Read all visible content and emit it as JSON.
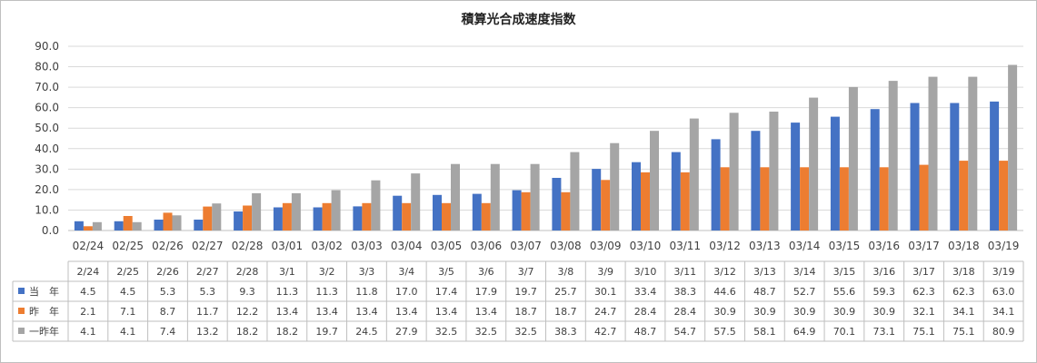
{
  "chart_data": {
    "type": "bar",
    "title": "積算光合成速度指数",
    "categories": [
      "02/24",
      "02/25",
      "02/26",
      "02/27",
      "02/28",
      "03/01",
      "03/02",
      "03/03",
      "03/04",
      "03/05",
      "03/06",
      "03/07",
      "03/08",
      "03/09",
      "03/10",
      "03/11",
      "03/12",
      "03/13",
      "03/14",
      "03/15",
      "03/16",
      "03/17",
      "03/18",
      "03/19"
    ],
    "table_headers": [
      "2/24",
      "2/25",
      "2/26",
      "2/27",
      "2/28",
      "3/1",
      "3/2",
      "3/3",
      "3/4",
      "3/5",
      "3/6",
      "3/7",
      "3/8",
      "3/9",
      "3/10",
      "3/11",
      "3/12",
      "3/13",
      "3/14",
      "3/15",
      "3/16",
      "3/17",
      "3/18",
      "3/19"
    ],
    "ylim": [
      0,
      90
    ],
    "yticks": [
      "0.0",
      "10.0",
      "20.0",
      "30.0",
      "40.0",
      "50.0",
      "60.0",
      "70.0",
      "80.0",
      "90.0"
    ],
    "grid": true,
    "legend": "data-table",
    "series": [
      {
        "name": "当　年",
        "color": "#4472c4",
        "values": [
          4.5,
          4.5,
          5.3,
          5.3,
          9.3,
          11.3,
          11.3,
          11.8,
          17.0,
          17.4,
          17.9,
          19.7,
          25.7,
          30.1,
          33.4,
          38.3,
          44.6,
          48.7,
          52.7,
          55.6,
          59.3,
          62.3,
          62.3,
          63.0
        ],
        "labels": [
          "4.5",
          "4.5",
          "5.3",
          "5.3",
          "9.3",
          "11.3",
          "11.3",
          "11.8",
          "17.0",
          "17.4",
          "17.9",
          "19.7",
          "25.7",
          "30.1",
          "33.4",
          "38.3",
          "44.6",
          "48.7",
          "52.7",
          "55.6",
          "59.3",
          "62.3",
          "62.3",
          "63.0"
        ]
      },
      {
        "name": "昨　年",
        "color": "#ed7d31",
        "values": [
          2.1,
          7.1,
          8.7,
          11.7,
          12.2,
          13.4,
          13.4,
          13.4,
          13.4,
          13.4,
          13.4,
          18.7,
          18.7,
          24.7,
          28.4,
          28.4,
          30.9,
          30.9,
          30.9,
          30.9,
          30.9,
          32.1,
          34.1,
          34.1
        ],
        "labels": [
          "2.1",
          "7.1",
          "8.7",
          "11.7",
          "12.2",
          "13.4",
          "13.4",
          "13.4",
          "13.4",
          "13.4",
          "13.4",
          "18.7",
          "18.7",
          "24.7",
          "28.4",
          "28.4",
          "30.9",
          "30.9",
          "30.9",
          "30.9",
          "30.9",
          "32.1",
          "34.1",
          "34.1"
        ]
      },
      {
        "name": "一昨年",
        "color": "#a5a5a5",
        "values": [
          4.1,
          4.1,
          7.4,
          13.2,
          18.2,
          18.2,
          19.7,
          24.5,
          27.9,
          32.5,
          32.5,
          32.5,
          38.3,
          42.7,
          48.7,
          54.7,
          57.5,
          58.1,
          64.9,
          70.1,
          73.1,
          75.1,
          75.1,
          80.9
        ],
        "labels": [
          "4.1",
          "4.1",
          "7.4",
          "13.2",
          "18.2",
          "18.2",
          "19.7",
          "24.5",
          "27.9",
          "32.5",
          "32.5",
          "32.5",
          "38.3",
          "42.7",
          "48.7",
          "54.7",
          "57.5",
          "58.1",
          "64.9",
          "70.1",
          "73.1",
          "75.1",
          "75.1",
          "80.9"
        ]
      }
    ]
  }
}
